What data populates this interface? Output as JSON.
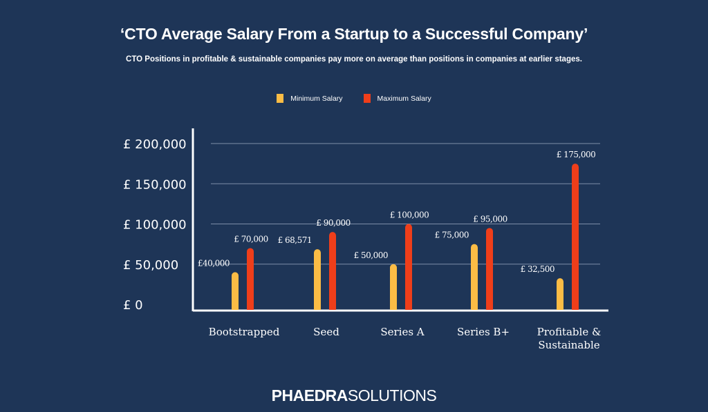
{
  "chart_data": {
    "type": "bar",
    "title": "‘CTO Average Salary From a Startup to a Successful Company’",
    "subtitle": "CTO Positions in profitable & sustainable companies pay more on average than positions in companies at earlier stages.",
    "categories": [
      "Bootstrapped",
      "Seed",
      "Series A",
      "Series B+",
      "Profitable & Sustainable"
    ],
    "category_lines": [
      [
        "Bootstrapped"
      ],
      [
        "Seed"
      ],
      [
        "Series A"
      ],
      [
        "Series B+"
      ],
      [
        "Profitable &",
        "Sustainable"
      ]
    ],
    "series": [
      {
        "name": "Minimum Salary",
        "color": "#fbbc45",
        "values": [
          40000,
          68571,
          50000,
          75000,
          32500
        ],
        "labels": [
          "£40,000",
          "£ 68,571",
          "£ 50,000",
          "£ 75,000",
          "£ 32,500"
        ]
      },
      {
        "name": "Maximum Salary",
        "color": "#ef3e1a",
        "values": [
          70000,
          90000,
          100000,
          95000,
          175000
        ],
        "labels": [
          "£ 70,000",
          "£ 90,000",
          "£ 100,000",
          "£ 95,000",
          "£ 175,000"
        ]
      }
    ],
    "yticks": [
      0,
      50000,
      100000,
      150000,
      200000
    ],
    "ytick_labels": [
      "£ 0",
      "£ 50,000",
      "£ 100,000",
      "£ 150,000",
      "£ 200,000"
    ],
    "ylim": [
      0,
      200000
    ],
    "grid": true,
    "legend": "top-center",
    "background": "#1e3557"
  },
  "brand": {
    "bold": "PHAEDRA",
    "light": "SOLUTIONS"
  }
}
